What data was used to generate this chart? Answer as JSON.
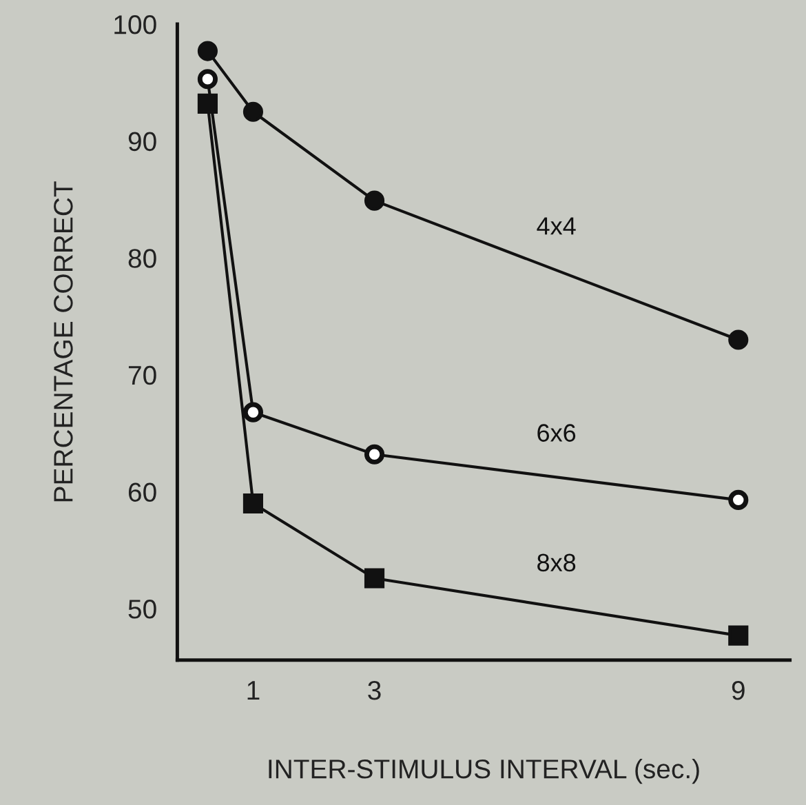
{
  "chart_data": {
    "type": "line",
    "xlabel": "INTER-STIMULUS INTERVAL (sec.)",
    "ylabel": "PERCENTAGE CORRECT",
    "x": [
      0.25,
      1,
      3,
      9
    ],
    "series": [
      {
        "name": "4x4",
        "color": "#111111",
        "marker": "circle",
        "values": [
          97.7,
          92.5,
          84.9,
          73.0
        ]
      },
      {
        "name": "6x6",
        "color": "#111111",
        "colors": [
          "#ffffff",
          "#ffffff",
          "#ffffff",
          "#ffffff"
        ],
        "marker": "circle",
        "values": [
          95.3,
          66.8,
          63.2,
          59.3
        ]
      },
      {
        "name": "8x8",
        "color": "#111111",
        "marker": "square",
        "values": [
          93.2,
          59.0,
          52.6,
          47.7
        ]
      }
    ],
    "xlim": [
      -0.25,
      9.85
    ],
    "xticks": [
      1,
      3,
      9
    ],
    "ylim": [
      45.6,
      100
    ],
    "yticks": [
      50,
      60,
      70,
      80,
      90,
      100
    ],
    "grid": false,
    "legend": false,
    "line_style": "solid"
  }
}
